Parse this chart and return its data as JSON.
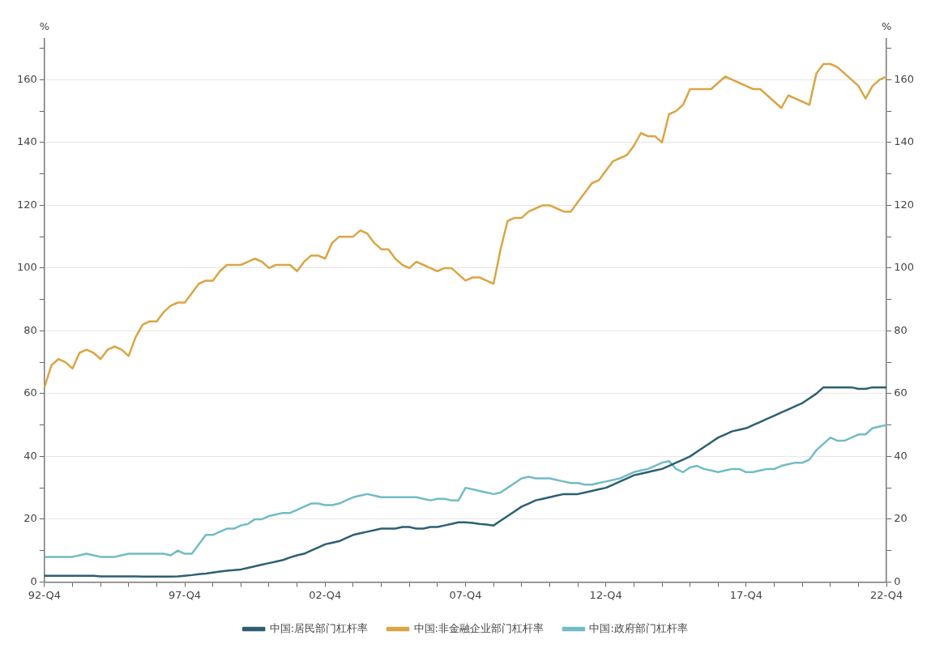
{
  "chart_data": {
    "type": "line",
    "ylabel": "%",
    "y2label": "%",
    "categories": [
      "92-Q4",
      null,
      null,
      null,
      null,
      null,
      null,
      null,
      null,
      null,
      null,
      null,
      null,
      null,
      null,
      null,
      null,
      null,
      null,
      null,
      "97-Q4",
      null,
      null,
      null,
      null,
      null,
      null,
      null,
      null,
      null,
      null,
      null,
      null,
      null,
      null,
      null,
      null,
      null,
      null,
      null,
      "02-Q4",
      null,
      null,
      null,
      null,
      null,
      null,
      null,
      null,
      null,
      null,
      null,
      null,
      null,
      null,
      null,
      null,
      null,
      null,
      null,
      "07-Q4",
      null,
      null,
      null,
      null,
      null,
      null,
      null,
      null,
      null,
      null,
      null,
      null,
      null,
      null,
      null,
      null,
      null,
      null,
      null,
      "12-Q4",
      null,
      null,
      null,
      null,
      null,
      null,
      null,
      null,
      null,
      null,
      null,
      null,
      null,
      null,
      null,
      null,
      null,
      null,
      null,
      "17-Q4",
      null,
      null,
      null,
      null,
      null,
      null,
      null,
      null,
      null,
      null,
      null,
      null,
      null,
      null,
      null,
      null,
      null,
      null,
      null,
      "22-Q4"
    ],
    "series": [
      {
        "name": "中国:居民部门杠杆率",
        "color": "#2d5f73",
        "values": [
          2,
          2,
          2,
          2,
          2,
          2,
          2,
          2,
          1.8,
          1.8,
          1.8,
          1.8,
          1.8,
          1.8,
          1.7,
          1.7,
          1.7,
          1.7,
          1.7,
          1.8,
          2,
          2.2,
          2.5,
          2.7,
          3,
          3.3,
          3.6,
          3.8,
          4,
          4.5,
          5,
          5.5,
          6,
          6.5,
          7,
          7.8,
          8.5,
          9,
          10,
          11,
          12,
          12.5,
          13,
          14,
          15,
          15.5,
          16,
          16.5,
          17,
          17,
          17,
          17.5,
          17.5,
          17,
          17,
          17.5,
          17.5,
          18,
          18.5,
          19,
          19,
          18.8,
          18.5,
          18.3,
          18,
          19.5,
          21,
          22.5,
          24,
          25,
          26,
          26.5,
          27,
          27.5,
          28,
          28,
          28,
          28.5,
          29,
          29.5,
          30,
          31,
          32,
          33,
          34,
          34.5,
          35,
          35.5,
          36,
          37,
          38,
          39,
          40,
          41.5,
          43,
          44.5,
          46,
          47,
          48,
          48.5,
          49,
          50,
          51,
          52,
          53,
          54,
          55,
          56,
          57,
          58.5,
          60,
          62,
          62,
          62,
          62,
          62,
          61.5,
          61.5,
          62,
          62,
          62
        ]
      },
      {
        "name": "中国:非金融企业部门杠杆率",
        "color": "#dba544",
        "values": [
          62,
          69,
          71,
          70,
          68,
          73,
          74,
          73,
          71,
          74,
          75,
          74,
          72,
          78,
          82,
          83,
          83,
          86,
          88,
          89,
          89,
          92,
          95,
          96,
          96,
          99,
          101,
          101,
          101,
          102,
          103,
          102,
          100,
          101,
          101,
          101,
          99,
          102,
          104,
          104,
          103,
          108,
          110,
          110,
          110,
          112,
          111,
          108,
          106,
          106,
          103,
          101,
          100,
          102,
          101,
          100,
          99,
          100,
          100,
          98,
          96,
          97,
          97,
          96,
          95,
          106,
          115,
          116,
          116,
          118,
          119,
          120,
          120,
          119,
          118,
          118,
          121,
          124,
          127,
          128,
          131,
          134,
          135,
          136,
          139,
          143,
          142,
          142,
          140,
          149,
          150,
          152,
          157,
          157,
          157,
          157,
          159,
          161,
          160,
          159,
          158,
          157,
          157,
          155,
          153,
          151,
          155,
          154,
          153,
          152,
          162,
          165,
          165,
          164,
          162,
          160,
          158,
          154,
          158,
          160,
          161
        ]
      },
      {
        "name": "中国:政府部门杠杆率",
        "color": "#72bcc4",
        "values": [
          8,
          8,
          8,
          8,
          8,
          8.5,
          9,
          8.5,
          8,
          8,
          8,
          8.5,
          9,
          9,
          9,
          9,
          9,
          9,
          8.5,
          10,
          9,
          9,
          12,
          15,
          15,
          16,
          17,
          17,
          18,
          18.5,
          20,
          20,
          21,
          21.5,
          22,
          22,
          23,
          24,
          25,
          25,
          24.5,
          24.5,
          25,
          26,
          27,
          27.5,
          28,
          27.5,
          27,
          27,
          27,
          27,
          27,
          27,
          26.5,
          26,
          26.5,
          26.5,
          26,
          26,
          30,
          29.5,
          29,
          28.5,
          28,
          28.5,
          30,
          31.5,
          33,
          33.5,
          33,
          33,
          33,
          32.5,
          32,
          31.5,
          31.5,
          31,
          31,
          31.5,
          32,
          32.5,
          33,
          34,
          35,
          35.5,
          36,
          37,
          38,
          38.5,
          36,
          35,
          36.5,
          37,
          36,
          35.5,
          35,
          35.5,
          36,
          36,
          35,
          35,
          35.5,
          36,
          36,
          37,
          37.5,
          38,
          38,
          39,
          42,
          44,
          46,
          45,
          45,
          46,
          47,
          47,
          49,
          49.5,
          50
        ]
      }
    ],
    "ylim": [
      0,
      173
    ],
    "yticks": [
      0,
      {
        "value": 10,
        "label": null
      },
      20,
      {
        "value": 30,
        "label": null
      },
      40,
      {
        "value": 50,
        "label": null
      },
      60,
      {
        "value": 70,
        "label": null
      },
      80,
      {
        "value": 90,
        "label": null
      },
      100,
      {
        "value": 110,
        "label": null
      },
      120,
      {
        "value": 130,
        "label": null
      },
      140,
      {
        "value": 150,
        "label": null
      },
      160,
      {
        "value": 170,
        "label": null
      }
    ],
    "y2lim": [
      0,
      173
    ],
    "y2ticks": [
      0,
      {
        "value": 10,
        "label": null
      },
      20,
      {
        "value": 30,
        "label": null
      },
      40,
      {
        "value": 50,
        "label": null
      },
      60,
      {
        "value": 70,
        "label": null
      },
      80,
      {
        "value": 90,
        "label": null
      },
      100,
      {
        "value": 110,
        "label": null
      },
      120,
      {
        "value": 130,
        "label": null
      },
      140,
      {
        "value": 150,
        "label": null
      },
      160,
      {
        "value": 170,
        "label": null
      }
    ],
    "grid": "y",
    "legend": "bottom",
    "marker": "none",
    "line_style": "solid"
  }
}
